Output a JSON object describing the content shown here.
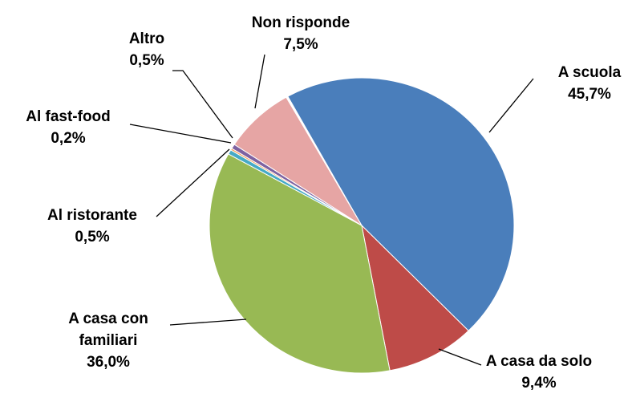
{
  "chart_data": {
    "type": "pie",
    "categories": [
      "A scuola",
      "A casa da solo",
      "A casa con familiari",
      "Al ristorante",
      "Al fast-food",
      "Altro",
      "Non risponde"
    ],
    "values": [
      45.7,
      9.4,
      36.0,
      0.5,
      0.2,
      0.5,
      7.5
    ],
    "value_labels": [
      "45,7%",
      "9,4%",
      "36,0%",
      "0,5%",
      "0,2%",
      "0,5%",
      "7,5%"
    ],
    "colors": [
      "#4a7ebb",
      "#be4b48",
      "#98b954",
      "#46aac5",
      "#f59d56",
      "#7e62a1",
      "#e6a5a4"
    ]
  }
}
